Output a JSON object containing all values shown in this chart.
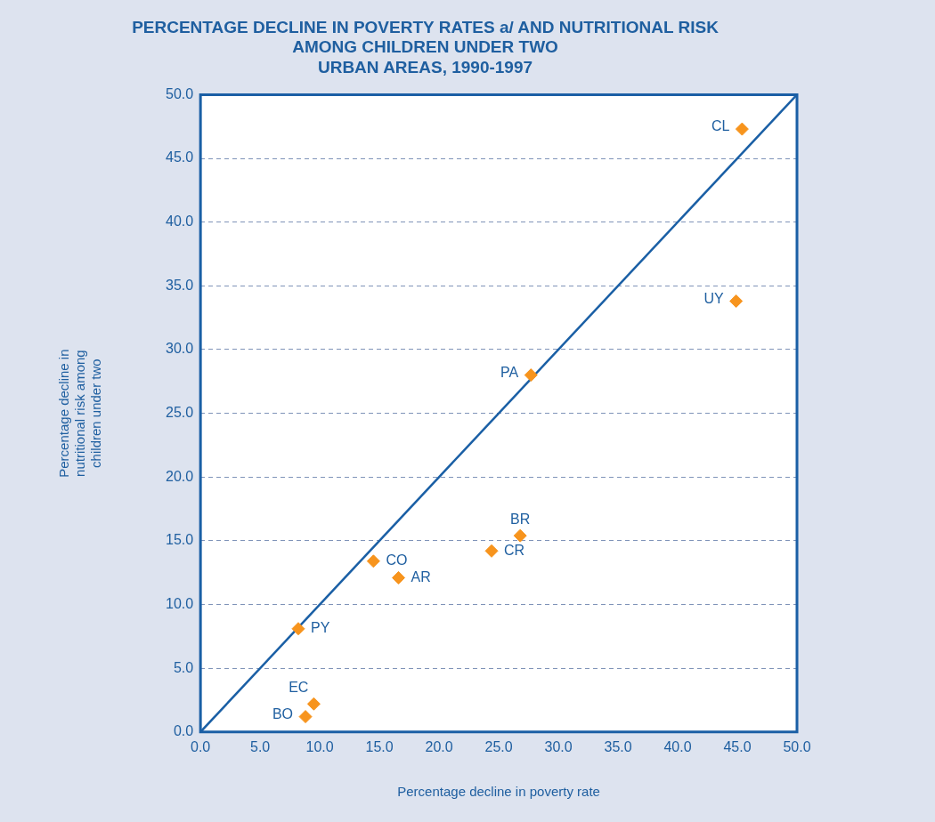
{
  "chart_data": {
    "type": "scatter",
    "title": "PERCENTAGE DECLINE IN POVERTY RATES a/ AND NUTRITIONAL RISK\nAMONG CHILDREN UNDER TWO\nURBAN AREAS, 1990-1997",
    "xlabel": "Percentage decline in poverty rate",
    "ylabel": "Percentage decline in\nnutritional risk among\nchildren under two",
    "series": [
      {
        "color": "#f7941d",
        "marker": "diamond",
        "x": [
          45.4,
          44.9,
          27.7,
          26.8,
          24.4,
          14.5,
          16.6,
          8.2,
          9.5,
          8.8
        ],
        "values": [
          47.3,
          33.8,
          28.0,
          15.4,
          14.2,
          13.4,
          12.1,
          8.1,
          2.2,
          1.2
        ]
      },
      {
        "type": "line",
        "color": "#1a5fa5",
        "x": [
          0,
          50
        ],
        "values": [
          0,
          50
        ]
      }
    ],
    "annotations": [
      {
        "text": "CL",
        "x": 45.4,
        "y": 47.3
      },
      {
        "text": "UY",
        "x": 44.9,
        "y": 33.8
      },
      {
        "text": "PA",
        "x": 27.7,
        "y": 28.0
      },
      {
        "text": "BR",
        "x": 26.8,
        "y": 15.4
      },
      {
        "text": "CR",
        "x": 24.4,
        "y": 14.2
      },
      {
        "text": "CO",
        "x": 14.5,
        "y": 13.4
      },
      {
        "text": "AR",
        "x": 16.6,
        "y": 12.1
      },
      {
        "text": "PY",
        "x": 8.2,
        "y": 8.1
      },
      {
        "text": "EC",
        "x": 9.5,
        "y": 2.2
      },
      {
        "text": "BO",
        "x": 8.8,
        "y": 1.2
      }
    ],
    "line_style": "solid",
    "grid": "y",
    "legend": false,
    "xlim": [
      0,
      50
    ],
    "ylim": [
      0,
      50
    ],
    "xticks": [
      {
        "value": 0,
        "label": "0.0"
      },
      {
        "value": 5,
        "label": "5.0"
      },
      {
        "value": 10,
        "label": "10.0"
      },
      {
        "value": 15,
        "label": "15.0"
      },
      {
        "value": 20,
        "label": "20.0"
      },
      {
        "value": 25,
        "label": "25.0"
      },
      {
        "value": 30,
        "label": "30.0"
      },
      {
        "value": 35,
        "label": "35.0"
      },
      {
        "value": 40,
        "label": "40.0"
      },
      {
        "value": 45,
        "label": "45.0"
      },
      {
        "value": 50,
        "label": "50.0"
      }
    ],
    "yticks": [
      {
        "value": 0,
        "label": "0.0"
      },
      {
        "value": 5,
        "label": "5.0"
      },
      {
        "value": 10,
        "label": "10.0"
      },
      {
        "value": 15,
        "label": "15.0"
      },
      {
        "value": 20,
        "label": "20.0"
      },
      {
        "value": 25,
        "label": "25.0"
      },
      {
        "value": 30,
        "label": "30.0"
      },
      {
        "value": 35,
        "label": "35.0"
      },
      {
        "value": 40,
        "label": "40.0"
      },
      {
        "value": 45,
        "label": "45.0"
      },
      {
        "value": 50,
        "label": "50.0"
      }
    ]
  }
}
